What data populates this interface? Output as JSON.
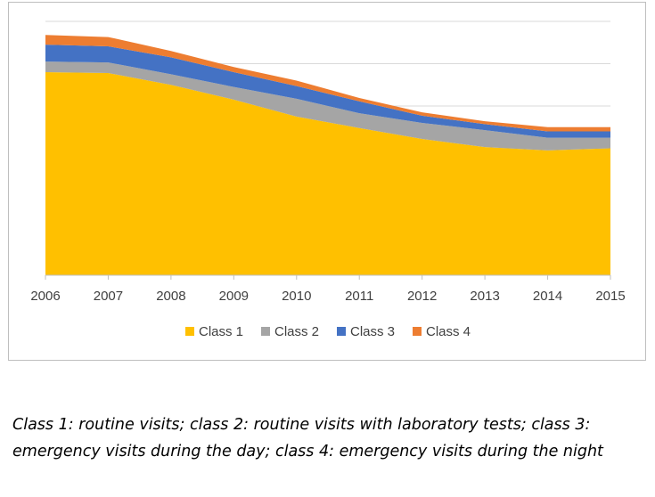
{
  "chart_data": {
    "type": "area",
    "stacked": true,
    "x": [
      "2006",
      "2007",
      "2008",
      "2009",
      "2010",
      "2011",
      "2012",
      "2013",
      "2014",
      "2015"
    ],
    "ylim": [
      0,
      6
    ],
    "y_tick_labels_visible": false,
    "grid": true,
    "legend_position": "bottom",
    "series": [
      {
        "name": "Class 1",
        "color": "#FFC000",
        "values": [
          4.8,
          4.78,
          4.5,
          4.15,
          3.75,
          3.48,
          3.22,
          3.03,
          2.95,
          3.0
        ]
      },
      {
        "name": "Class 2",
        "color": "#A5A5A5",
        "values": [
          0.25,
          0.25,
          0.25,
          0.3,
          0.42,
          0.35,
          0.38,
          0.4,
          0.3,
          0.25
        ]
      },
      {
        "name": "Class 3",
        "color": "#4472C4",
        "values": [
          0.4,
          0.38,
          0.4,
          0.35,
          0.3,
          0.28,
          0.17,
          0.14,
          0.15,
          0.15
        ]
      },
      {
        "name": "Class 4",
        "color": "#ED7D31",
        "values": [
          0.23,
          0.22,
          0.15,
          0.12,
          0.13,
          0.08,
          0.08,
          0.07,
          0.1,
          0.1
        ]
      }
    ]
  },
  "caption": {
    "line1": "Class 1: routine visits; class 2: routine visits with laboratory tests; class 3:",
    "line2": "emergency visits during the day; class 4: emergency visits during the night"
  }
}
